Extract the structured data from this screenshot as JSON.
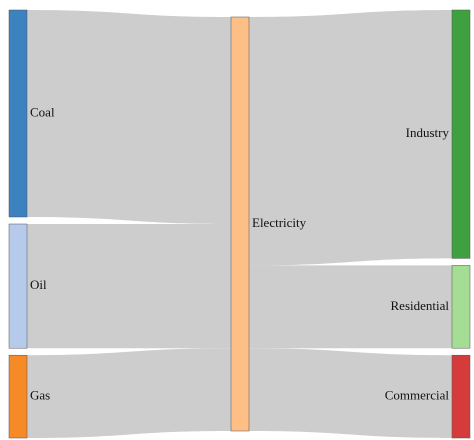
{
  "chart_data": {
    "type": "sankey",
    "nodes": [
      {
        "name": "Coal",
        "color": "#3b82bf",
        "value": 50,
        "column": 0
      },
      {
        "name": "Oil",
        "color": "#b6cbeb",
        "value": 30,
        "column": 0
      },
      {
        "name": "Gas",
        "color": "#f58a26",
        "value": 20,
        "column": 0
      },
      {
        "name": "Electricity",
        "color": "#fdbf86",
        "value": 100,
        "column": 1
      },
      {
        "name": "Industry",
        "color": "#3ea03e",
        "value": 60,
        "column": 2
      },
      {
        "name": "Residential",
        "color": "#a5dd95",
        "value": 20,
        "column": 2
      },
      {
        "name": "Commercial",
        "color": "#d63b3b",
        "value": 20,
        "column": 2
      }
    ],
    "links": [
      {
        "source": 0,
        "target": 3,
        "value": 50
      },
      {
        "source": 1,
        "target": 3,
        "value": 30
      },
      {
        "source": 2,
        "target": 3,
        "value": 20
      },
      {
        "source": 3,
        "target": 4,
        "value": 60
      },
      {
        "source": 3,
        "target": 5,
        "value": 20
      },
      {
        "source": 3,
        "target": 6,
        "value": 20
      }
    ],
    "link_color": "#c8c8c8"
  }
}
